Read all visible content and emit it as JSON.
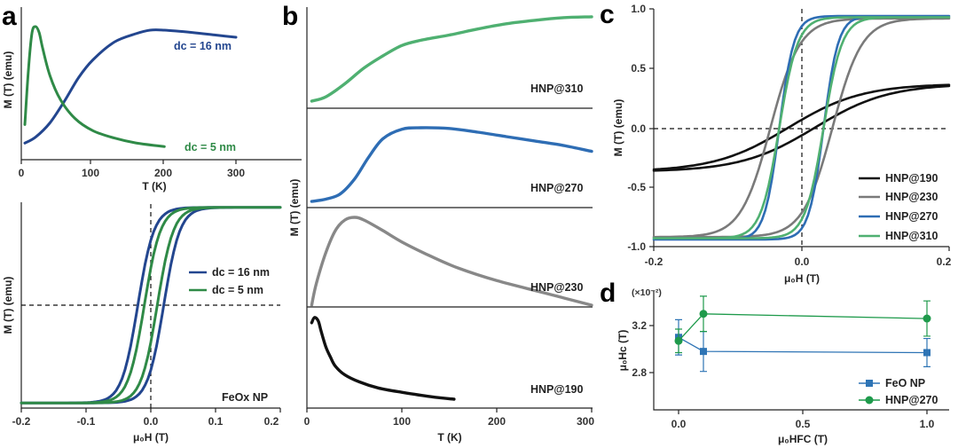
{
  "colors": {
    "navy": "#23468f",
    "green": "#2f8a47",
    "black": "#111111",
    "gray": "#7a7a7a",
    "blue": "#2e6db4",
    "lightgreen": "#4fb071",
    "sq_blue": "#2e74b5",
    "dot_green": "#1e9a4b"
  },
  "panels": {
    "a": "a",
    "b": "b",
    "c": "c",
    "d": "d",
    "a_top_ylabel": "M (T) (emu)",
    "a_top_xlabel": "T (K)",
    "a_bot_ylabel": "M (T) (emu)",
    "a_bot_xlabel": "μ₀H (T)",
    "b_ylabel": "M (T) (emu)",
    "b_xlabel": "T (K)",
    "c_ylabel": "M (T) (emu)",
    "c_xlabel": "μ₀H (T)",
    "d_ylabel": "μ₀Hc (T)",
    "d_xlabel": "μ₀HFC (T)",
    "d_scale": "(×10⁻²)",
    "a_top_label_16": "dc = 16 nm",
    "a_top_label_5": "dc = 5 nm",
    "a_bot_leg_16": "dc = 16 nm",
    "a_bot_leg_5": "dc = 5 nm",
    "a_bot_sample": "FeOx NP",
    "b_label_310": "HNP@310",
    "b_label_270": "HNP@270",
    "b_label_230": "HNP@230",
    "b_label_190": "HNP@190",
    "c_leg_190": "HNP@190",
    "c_leg_230": "HNP@230",
    "c_leg_270": "HNP@270",
    "c_leg_310": "HNP@310",
    "d_leg_feo": "FeO NP",
    "d_leg_hnp": "HNP@270"
  },
  "chart_data": [
    {
      "id": "a-top",
      "type": "line",
      "xlabel": "T (K)",
      "ylabel": "M (T) (emu)",
      "xlim": [
        0,
        350
      ],
      "xticks": [
        "0",
        "100",
        "200",
        "300"
      ],
      "series": [
        {
          "name": "dc = 16 nm",
          "color": "#23468f",
          "x": [
            5,
            20,
            40,
            60,
            80,
            100,
            130,
            160,
            180,
            200,
            240,
            270,
            300
          ],
          "y": [
            0.05,
            0.1,
            0.22,
            0.4,
            0.6,
            0.75,
            0.9,
            0.97,
            1.0,
            1.0,
            0.98,
            0.96,
            0.94
          ]
        },
        {
          "name": "dc = 5 nm",
          "color": "#2f8a47",
          "x": [
            5,
            10,
            15,
            20,
            25,
            30,
            40,
            55,
            75,
            100,
            130,
            160,
            200
          ],
          "y": [
            0.2,
            0.65,
            0.95,
            1.0,
            0.95,
            0.82,
            0.6,
            0.4,
            0.25,
            0.15,
            0.09,
            0.05,
            0.02
          ]
        }
      ]
    },
    {
      "id": "a-bottom",
      "type": "line",
      "xlabel": "μ₀H (T)",
      "ylabel": "M (T) (emu)",
      "xlim": [
        -0.2,
        0.2
      ],
      "ylim": [
        -1,
        1
      ],
      "xticks": [
        "-0.2",
        "-0.1",
        "0.0",
        "0.1",
        "0.2"
      ],
      "series": [
        {
          "name": "dc = 16 nm",
          "color": "#23468f",
          "Ms": 0.95,
          "Hc": 0.02,
          "w": 0.025
        },
        {
          "name": "dc = 5 nm",
          "color": "#2f8a47",
          "Ms": 0.95,
          "Hc": 0.01,
          "w": 0.025
        }
      ]
    },
    {
      "id": "b",
      "type": "line",
      "xlabel": "T (K)",
      "ylabel": "M (T) (emu)",
      "xlim": [
        0,
        300
      ],
      "xticks": [
        "0",
        "100",
        "200",
        "300"
      ],
      "series": [
        {
          "name": "HNP@310",
          "color": "#4fb071",
          "x": [
            5,
            20,
            40,
            60,
            80,
            100,
            120,
            150,
            180,
            210,
            240,
            270,
            300
          ],
          "y": [
            0.0,
            0.05,
            0.2,
            0.38,
            0.52,
            0.64,
            0.7,
            0.76,
            0.83,
            0.89,
            0.93,
            0.96,
            0.97
          ]
        },
        {
          "name": "HNP@270",
          "color": "#2e6db4",
          "x": [
            5,
            20,
            35,
            50,
            65,
            80,
            100,
            120,
            150,
            180,
            210,
            240,
            270,
            300
          ],
          "y": [
            0.0,
            0.03,
            0.1,
            0.3,
            0.6,
            0.85,
            0.98,
            1.0,
            0.99,
            0.94,
            0.88,
            0.82,
            0.76,
            0.68
          ]
        },
        {
          "name": "HNP@230",
          "color": "#888888",
          "x": [
            5,
            10,
            20,
            30,
            40,
            50,
            60,
            80,
            100,
            130,
            160,
            200,
            250,
            300
          ],
          "y": [
            0.0,
            0.25,
            0.6,
            0.85,
            0.97,
            1.0,
            0.97,
            0.85,
            0.72,
            0.56,
            0.42,
            0.28,
            0.14,
            0.0
          ]
        },
        {
          "name": "HNP@190",
          "color": "#111111",
          "x": [
            5,
            8,
            12,
            15,
            20,
            25,
            30,
            40,
            55,
            75,
            100,
            130,
            155
          ],
          "y": [
            0.9,
            0.96,
            0.92,
            0.8,
            0.62,
            0.5,
            0.4,
            0.3,
            0.22,
            0.15,
            0.1,
            0.05,
            0.02
          ]
        }
      ]
    },
    {
      "id": "c",
      "type": "line",
      "xlabel": "μ₀H (T)",
      "ylabel": "M (T) (emu)",
      "xlim": [
        -0.2,
        0.2
      ],
      "ylim": [
        -1.0,
        1.0
      ],
      "xticks": [
        "-0.2",
        "0.0",
        "0.2"
      ],
      "yticks": [
        "-1.0",
        "-0.5",
        "0.0",
        "0.5",
        "1.0"
      ],
      "series": [
        {
          "name": "HNP@190",
          "color": "#111111",
          "Ms": 0.37,
          "Hc": 0.018,
          "w": 0.1
        },
        {
          "name": "HNP@230",
          "color": "#7a7a7a",
          "Ms": 0.92,
          "Hc": 0.042,
          "w": 0.04
        },
        {
          "name": "HNP@270",
          "color": "#2e6db4",
          "Ms": 0.94,
          "Hc": 0.03,
          "w": 0.02
        },
        {
          "name": "HNP@310",
          "color": "#4fb071",
          "Ms": 0.93,
          "Hc": 0.03,
          "w": 0.025
        }
      ]
    },
    {
      "id": "d",
      "type": "scatter",
      "xlabel": "μ₀HFC (T)",
      "ylabel": "μ₀Hc (T)",
      "xlim": [
        -0.1,
        1.1
      ],
      "ylim": [
        2.55,
        3.45
      ],
      "xticks": [
        "0.0",
        "0.5",
        "1.0"
      ],
      "yticks": [
        "2.8",
        "3.2"
      ],
      "series": [
        {
          "name": "FeO NP",
          "color": "#2e74b5",
          "marker": "square",
          "x": [
            0.0,
            0.1,
            1.0
          ],
          "y": [
            3.1,
            2.98,
            2.97
          ],
          "err": [
            0.15,
            0.17,
            0.12
          ]
        },
        {
          "name": "HNP@270",
          "color": "#1e9a4b",
          "marker": "circle",
          "x": [
            0.0,
            0.1,
            1.0
          ],
          "y": [
            3.07,
            3.3,
            3.26
          ],
          "err": [
            0.1,
            0.15,
            0.15
          ]
        }
      ]
    }
  ]
}
